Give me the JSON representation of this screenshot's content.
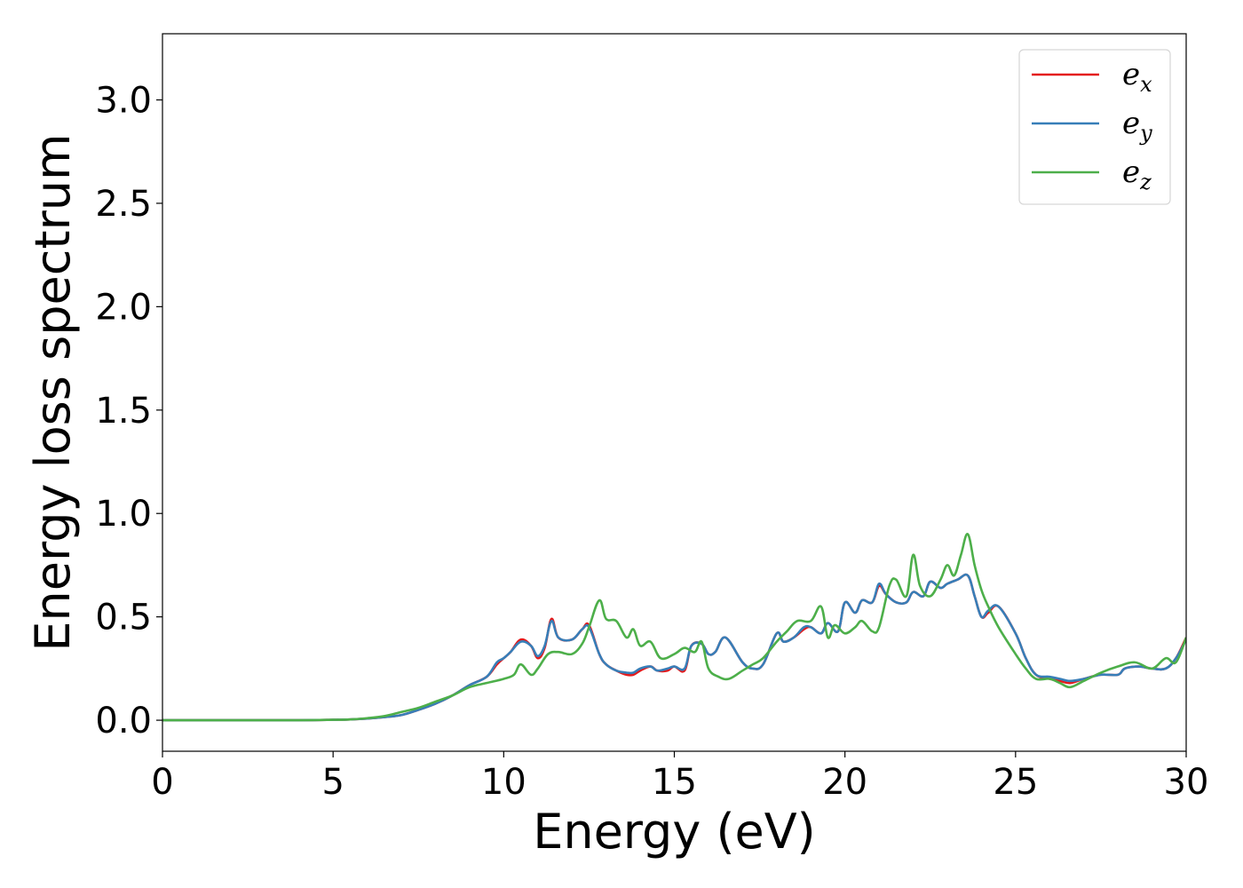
{
  "chart_data": {
    "type": "line",
    "xlabel": "Energy (eV)",
    "ylabel": "Energy loss spectrum",
    "xlim": [
      0,
      30
    ],
    "ylim": [
      -0.15,
      3.32
    ],
    "xticks": [
      "0",
      "5",
      "10",
      "15",
      "20",
      "25",
      "30"
    ],
    "yticks": [
      "0.0",
      "0.5",
      "1.0",
      "1.5",
      "2.0",
      "2.5",
      "3.0"
    ],
    "grid": false,
    "legend_position": "top-right",
    "series": [
      {
        "name": "e_x",
        "legend_base": "e",
        "legend_sub": "x",
        "color": "#e41a1c",
        "x": [
          0,
          2,
          4,
          5,
          5.5,
          6,
          6.5,
          7,
          7.5,
          8,
          8.5,
          9,
          9.5,
          9.8,
          10,
          10.2,
          10.5,
          10.8,
          11,
          11.2,
          11.4,
          11.6,
          12,
          12.3,
          12.5,
          12.8,
          13,
          13.3,
          13.6,
          13.8,
          14,
          14.3,
          14.5,
          14.8,
          15,
          15.3,
          15.5,
          15.8,
          16,
          16.2,
          16.5,
          17,
          17.3,
          17.6,
          18,
          18.2,
          18.5,
          18.8,
          19,
          19.3,
          19.5,
          19.8,
          20,
          20.3,
          20.5,
          20.8,
          21,
          21.2,
          21.5,
          21.8,
          22,
          22.3,
          22.5,
          22.8,
          23,
          23.3,
          23.6,
          23.8,
          24,
          24.2,
          24.5,
          25,
          25.3,
          25.6,
          26,
          26.3,
          26.6,
          27,
          27.5,
          28,
          28.2,
          28.6,
          29,
          29.4,
          29.7,
          30
        ],
        "y": [
          0,
          0,
          0,
          0.002,
          0.004,
          0.008,
          0.015,
          0.025,
          0.05,
          0.08,
          0.12,
          0.17,
          0.21,
          0.27,
          0.3,
          0.33,
          0.39,
          0.36,
          0.3,
          0.35,
          0.49,
          0.4,
          0.39,
          0.44,
          0.46,
          0.32,
          0.27,
          0.24,
          0.22,
          0.22,
          0.24,
          0.26,
          0.24,
          0.24,
          0.26,
          0.24,
          0.36,
          0.37,
          0.32,
          0.33,
          0.4,
          0.28,
          0.25,
          0.27,
          0.42,
          0.38,
          0.4,
          0.44,
          0.45,
          0.42,
          0.47,
          0.43,
          0.57,
          0.52,
          0.58,
          0.57,
          0.65,
          0.61,
          0.57,
          0.57,
          0.62,
          0.6,
          0.67,
          0.64,
          0.66,
          0.68,
          0.7,
          0.6,
          0.5,
          0.52,
          0.55,
          0.42,
          0.3,
          0.22,
          0.2,
          0.19,
          0.18,
          0.2,
          0.22,
          0.22,
          0.25,
          0.26,
          0.25,
          0.25,
          0.3,
          0.4
        ]
      },
      {
        "name": "e_y",
        "legend_base": "e",
        "legend_sub": "y",
        "color": "#377eb8",
        "x": [
          0,
          2,
          4,
          5,
          5.5,
          6,
          6.5,
          7,
          7.5,
          8,
          8.5,
          9,
          9.5,
          9.8,
          10,
          10.2,
          10.5,
          10.8,
          11,
          11.2,
          11.4,
          11.6,
          12,
          12.3,
          12.5,
          12.8,
          13,
          13.3,
          13.6,
          13.8,
          14,
          14.3,
          14.5,
          14.8,
          15,
          15.3,
          15.5,
          15.8,
          16,
          16.2,
          16.5,
          17,
          17.3,
          17.6,
          18,
          18.2,
          18.5,
          18.8,
          19,
          19.3,
          19.5,
          19.8,
          20,
          20.3,
          20.5,
          20.8,
          21,
          21.2,
          21.5,
          21.8,
          22,
          22.3,
          22.5,
          22.8,
          23,
          23.3,
          23.6,
          23.8,
          24,
          24.2,
          24.5,
          25,
          25.3,
          25.6,
          26,
          26.3,
          26.6,
          27,
          27.5,
          28,
          28.2,
          28.6,
          29,
          29.4,
          29.7,
          30
        ],
        "y": [
          0,
          0,
          0,
          0.002,
          0.004,
          0.008,
          0.015,
          0.025,
          0.05,
          0.08,
          0.12,
          0.17,
          0.21,
          0.28,
          0.3,
          0.33,
          0.38,
          0.36,
          0.31,
          0.36,
          0.48,
          0.4,
          0.39,
          0.44,
          0.45,
          0.32,
          0.27,
          0.24,
          0.23,
          0.23,
          0.25,
          0.26,
          0.24,
          0.25,
          0.26,
          0.25,
          0.36,
          0.37,
          0.32,
          0.33,
          0.4,
          0.28,
          0.25,
          0.27,
          0.42,
          0.38,
          0.4,
          0.45,
          0.45,
          0.42,
          0.47,
          0.43,
          0.57,
          0.52,
          0.58,
          0.57,
          0.66,
          0.61,
          0.57,
          0.57,
          0.62,
          0.6,
          0.67,
          0.64,
          0.66,
          0.68,
          0.7,
          0.6,
          0.5,
          0.53,
          0.55,
          0.42,
          0.3,
          0.22,
          0.21,
          0.2,
          0.19,
          0.2,
          0.22,
          0.22,
          0.25,
          0.26,
          0.25,
          0.25,
          0.3,
          0.39
        ]
      },
      {
        "name": "e_z",
        "legend_base": "e",
        "legend_sub": "z",
        "color": "#4daf4a",
        "x": [
          0,
          2,
          4,
          5,
          5.5,
          6,
          6.5,
          7,
          7.5,
          8,
          8.5,
          9,
          9.5,
          10,
          10.3,
          10.5,
          10.8,
          11,
          11.3,
          11.6,
          12,
          12.3,
          12.5,
          12.8,
          13,
          13.3,
          13.6,
          13.8,
          14,
          14.3,
          14.6,
          15,
          15.3,
          15.6,
          15.8,
          16,
          16.3,
          16.6,
          17,
          17.3,
          17.6,
          18,
          18.3,
          18.6,
          19,
          19.3,
          19.5,
          19.7,
          20,
          20.3,
          20.5,
          20.8,
          21,
          21.3,
          21.5,
          21.8,
          22,
          22.2,
          22.5,
          22.8,
          23,
          23.2,
          23.4,
          23.6,
          23.8,
          24,
          24.2,
          24.5,
          25,
          25.3,
          25.6,
          26,
          26.3,
          26.6,
          27,
          27.5,
          28,
          28.5,
          29,
          29.4,
          29.7,
          30
        ],
        "y": [
          0,
          0,
          0,
          0.002,
          0.004,
          0.01,
          0.02,
          0.04,
          0.06,
          0.09,
          0.12,
          0.16,
          0.18,
          0.2,
          0.22,
          0.27,
          0.22,
          0.25,
          0.32,
          0.33,
          0.32,
          0.37,
          0.45,
          0.58,
          0.49,
          0.48,
          0.4,
          0.44,
          0.36,
          0.38,
          0.3,
          0.32,
          0.35,
          0.33,
          0.38,
          0.25,
          0.21,
          0.2,
          0.24,
          0.27,
          0.3,
          0.38,
          0.43,
          0.48,
          0.48,
          0.55,
          0.4,
          0.46,
          0.42,
          0.45,
          0.48,
          0.43,
          0.45,
          0.65,
          0.68,
          0.6,
          0.8,
          0.65,
          0.6,
          0.68,
          0.75,
          0.7,
          0.8,
          0.9,
          0.75,
          0.63,
          0.55,
          0.45,
          0.32,
          0.25,
          0.2,
          0.2,
          0.18,
          0.16,
          0.19,
          0.23,
          0.26,
          0.28,
          0.25,
          0.3,
          0.28,
          0.4
        ]
      }
    ]
  }
}
